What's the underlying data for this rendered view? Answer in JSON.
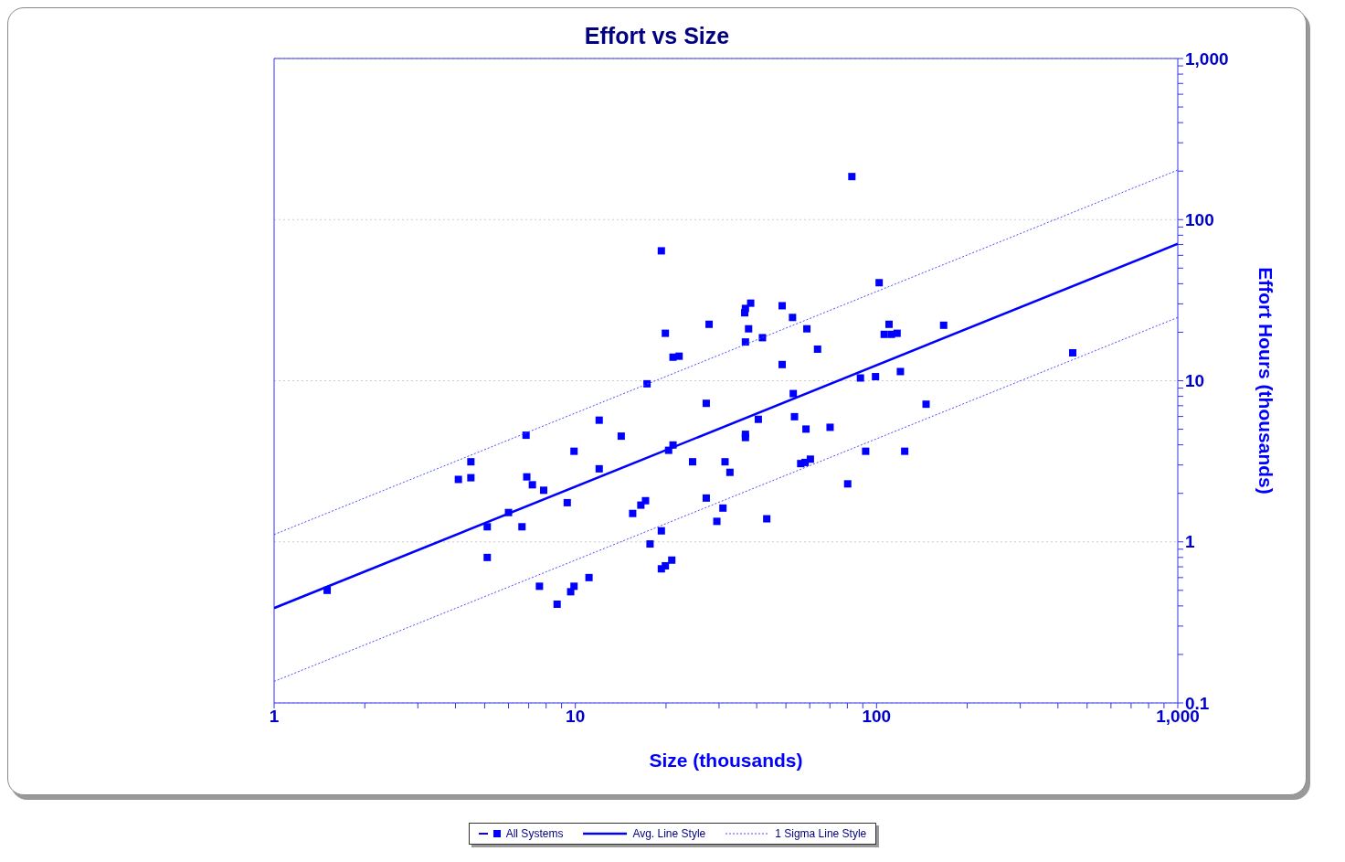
{
  "chart_data": {
    "type": "scatter",
    "title": "Effort vs Size",
    "xlabel": "Size (thousands)",
    "ylabel": "Effort Hours (thousands)",
    "log": "xy",
    "grid": "y",
    "legend": "bottom",
    "marker": "square",
    "xlim": [
      1,
      1000
    ],
    "ylim": [
      0.1,
      1000
    ],
    "xticks": [
      1,
      {
        "value": 2,
        "label": null
      },
      {
        "value": 3,
        "label": null
      },
      {
        "value": 4,
        "label": null
      },
      {
        "value": 5,
        "label": null
      },
      {
        "value": 6,
        "label": null
      },
      {
        "value": 7,
        "label": null
      },
      {
        "value": 8,
        "label": null
      },
      {
        "value": 9,
        "label": null
      },
      10,
      {
        "value": 20,
        "label": null
      },
      {
        "value": 30,
        "label": null
      },
      {
        "value": 40,
        "label": null
      },
      {
        "value": 50,
        "label": null
      },
      {
        "value": 60,
        "label": null
      },
      {
        "value": 70,
        "label": null
      },
      {
        "value": 80,
        "label": null
      },
      {
        "value": 90,
        "label": null
      },
      100,
      {
        "value": 200,
        "label": null
      },
      {
        "value": 300,
        "label": null
      },
      {
        "value": 400,
        "label": null
      },
      {
        "value": 500,
        "label": null
      },
      {
        "value": 600,
        "label": null
      },
      {
        "value": 700,
        "label": null
      },
      {
        "value": 800,
        "label": null
      },
      {
        "value": 900,
        "label": null
      },
      {
        "value": 1000,
        "label": "1,000"
      }
    ],
    "yticks": [
      0.1,
      {
        "value": 0.2,
        "label": null
      },
      {
        "value": 0.3,
        "label": null
      },
      {
        "value": 0.4,
        "label": null
      },
      {
        "value": 0.5,
        "label": null
      },
      {
        "value": 0.6,
        "label": null
      },
      {
        "value": 0.7,
        "label": null
      },
      {
        "value": 0.8,
        "label": null
      },
      {
        "value": 0.9,
        "label": null
      },
      1,
      {
        "value": 2,
        "label": null
      },
      {
        "value": 3,
        "label": null
      },
      {
        "value": 4,
        "label": null
      },
      {
        "value": 5,
        "label": null
      },
      {
        "value": 6,
        "label": null
      },
      {
        "value": 7,
        "label": null
      },
      {
        "value": 8,
        "label": null
      },
      {
        "value": 9,
        "label": null
      },
      10,
      {
        "value": 20,
        "label": null
      },
      {
        "value": 30,
        "label": null
      },
      {
        "value": 40,
        "label": null
      },
      {
        "value": 50,
        "label": null
      },
      {
        "value": 60,
        "label": null
      },
      {
        "value": 70,
        "label": null
      },
      {
        "value": 80,
        "label": null
      },
      {
        "value": 90,
        "label": null
      },
      100,
      {
        "value": 200,
        "label": null
      },
      {
        "value": 300,
        "label": null
      },
      {
        "value": 400,
        "label": null
      },
      {
        "value": 500,
        "label": null
      },
      {
        "value": 600,
        "label": null
      },
      {
        "value": 700,
        "label": null
      },
      {
        "value": 800,
        "label": null
      },
      {
        "value": 900,
        "label": null
      },
      {
        "value": 1000,
        "label": "1,000"
      }
    ],
    "series": [
      {
        "name": "All Systems",
        "color": "#0000ff",
        "x": [
          1.5,
          4.09,
          4.5,
          4.5,
          5.1,
          5.1,
          6.0,
          6.65,
          6.86,
          6.9,
          7.2,
          7.85,
          7.6,
          8.7,
          9.4,
          9.65,
          9.9,
          9.9,
          11.1,
          12.0,
          12.0,
          14.2,
          15.5,
          16.5,
          17.1,
          17.3,
          17.7,
          19.3,
          19.3,
          19.3,
          19.9,
          19.9,
          20.9,
          20.4,
          21.1,
          21.1,
          22.1,
          24.5,
          27.2,
          27.2,
          27.8,
          29.5,
          30.9,
          31.4,
          32.6,
          36.5,
          36.7,
          38.2,
          36.7,
          37.6,
          36.7,
          36.7,
          40.5,
          41.8,
          43.2,
          48.6,
          48.6,
          52.6,
          52.9,
          53.4,
          56.0,
          58.7,
          58.3,
          57.9,
          60.3,
          63.7,
          70.1,
          80.2,
          82.8,
          88.4,
          92.0,
          99.2,
          102,
          106,
          110,
          112,
          117,
          120,
          124,
          146,
          167,
          448
        ],
        "values": [
          0.5,
          2.44,
          3.14,
          2.5,
          1.24,
          0.8,
          1.52,
          1.24,
          4.59,
          2.53,
          2.26,
          2.09,
          0.53,
          0.41,
          1.75,
          0.49,
          0.53,
          3.65,
          0.6,
          5.69,
          2.84,
          4.53,
          1.5,
          1.69,
          1.8,
          9.57,
          0.97,
          64,
          1.17,
          0.68,
          0.71,
          19.7,
          0.77,
          3.7,
          3.99,
          14.0,
          14.2,
          3.14,
          1.87,
          7.24,
          22.4,
          1.34,
          1.62,
          3.14,
          2.7,
          26.4,
          28.1,
          30.3,
          17.4,
          21.0,
          4.65,
          4.44,
          5.76,
          18.5,
          1.39,
          29.2,
          12.6,
          24.7,
          8.32,
          5.98,
          3.06,
          21.0,
          5.01,
          3.11,
          3.26,
          15.7,
          5.14,
          2.29,
          185,
          10.4,
          3.65,
          10.6,
          40.6,
          19.4,
          22.4,
          19.4,
          19.7,
          11.4,
          3.65,
          7.15,
          22.1,
          14.9
        ]
      },
      {
        "name": "Avg. Line Style",
        "type": "line",
        "color": "#0000ff",
        "line_style": "solid",
        "marker": "none",
        "x": [
          1,
          1000
        ],
        "values": [
          0.388,
          70.8
        ]
      },
      {
        "name": "1 Sigma Line Style",
        "type": "line",
        "color": "#4d4dff",
        "line_style": "dotted",
        "marker": "none",
        "x": [
          1,
          1000
        ],
        "values": [
          1.11,
          203
        ]
      },
      {
        "type": "line",
        "color": "#4d4dff",
        "line_style": "dotted",
        "marker": "none",
        "x": [
          1,
          1000
        ],
        "values": [
          0.136,
          24.7
        ]
      }
    ]
  }
}
